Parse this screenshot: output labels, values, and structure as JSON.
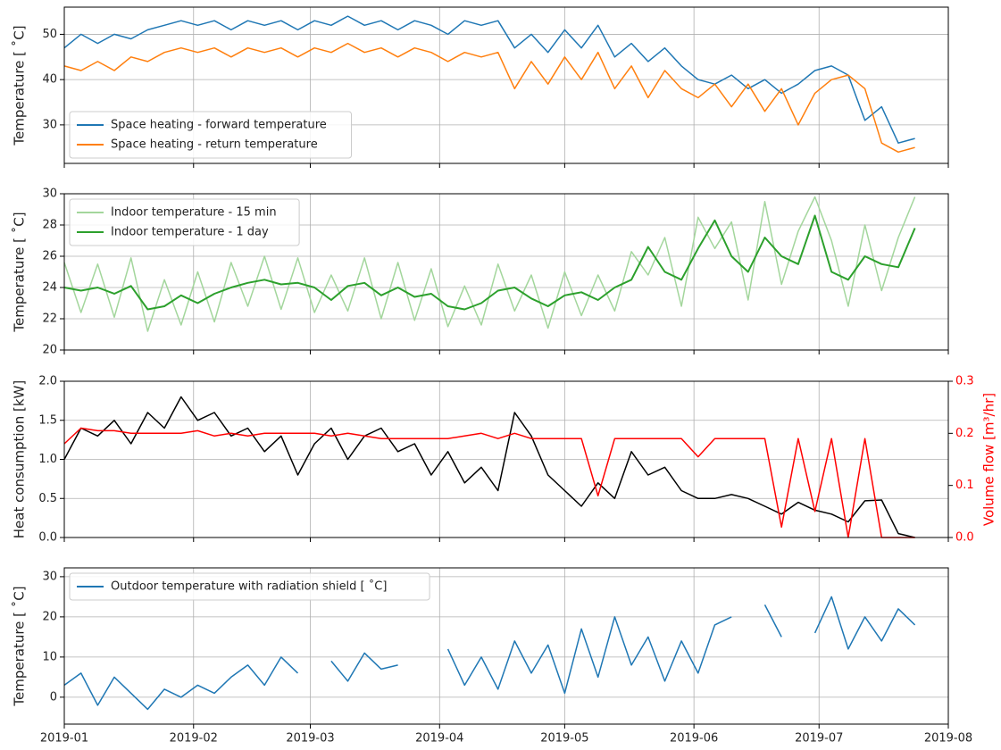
{
  "chart_data": [
    {
      "type": "line",
      "ylabel": "Temperature [ ˚C]",
      "legend": "lower left",
      "grid": true,
      "xlim": [
        0,
        212
      ],
      "xticks": [
        0,
        31,
        59,
        90,
        120,
        151,
        181,
        212
      ],
      "ylim": [
        21.5,
        56
      ],
      "yticks": [
        30,
        40,
        50
      ],
      "x": [
        0,
        4,
        8,
        12,
        16,
        20,
        24,
        28,
        32,
        36,
        40,
        44,
        48,
        52,
        56,
        60,
        64,
        68,
        72,
        76,
        80,
        84,
        88,
        92,
        96,
        100,
        104,
        108,
        112,
        116,
        120,
        124,
        128,
        132,
        136,
        140,
        144,
        148,
        152,
        156,
        160,
        164,
        168,
        172,
        176,
        180,
        184,
        188,
        192,
        196,
        200,
        204
      ],
      "series": [
        {
          "name": "Space heating - forward temperature",
          "color": "#1f77b4",
          "values": [
            47,
            50,
            48,
            50,
            49,
            51,
            52,
            53,
            52,
            53,
            51,
            53,
            52,
            53,
            51,
            53,
            52,
            54,
            52,
            53,
            51,
            53,
            52,
            50,
            53,
            52,
            53,
            47,
            50,
            46,
            51,
            47,
            52,
            45,
            48,
            44,
            47,
            43,
            40,
            39,
            41,
            38,
            40,
            37,
            39,
            42,
            43,
            41,
            31,
            34,
            26,
            27
          ]
        },
        {
          "name": "Space heating - return temperature",
          "color": "#ff7f0e",
          "values": [
            43,
            42,
            44,
            42,
            45,
            44,
            46,
            47,
            46,
            47,
            45,
            47,
            46,
            47,
            45,
            47,
            46,
            48,
            46,
            47,
            45,
            47,
            46,
            44,
            46,
            45,
            46,
            38,
            44,
            39,
            45,
            40,
            46,
            38,
            43,
            36,
            42,
            38,
            36,
            39,
            34,
            39,
            33,
            38,
            30,
            37,
            40,
            41,
            38,
            26,
            24,
            25
          ]
        }
      ]
    },
    {
      "type": "line",
      "ylabel": "Temperature [ ˚C]",
      "legend": "upper left",
      "grid": true,
      "xlim": [
        0,
        212
      ],
      "xticks": [
        0,
        31,
        59,
        90,
        120,
        151,
        181,
        212
      ],
      "ylim": [
        20,
        30
      ],
      "yticks": [
        20,
        22,
        24,
        26,
        28,
        30
      ],
      "x": [
        0,
        4,
        8,
        12,
        16,
        20,
        24,
        28,
        32,
        36,
        40,
        44,
        48,
        52,
        56,
        60,
        64,
        68,
        72,
        76,
        80,
        84,
        88,
        92,
        96,
        100,
        104,
        108,
        112,
        116,
        120,
        124,
        128,
        132,
        136,
        140,
        144,
        148,
        152,
        156,
        160,
        164,
        168,
        172,
        176,
        180,
        184,
        188,
        192,
        196,
        200,
        204
      ],
      "series": [
        {
          "name": "Indoor temperature - 15 min",
          "color": "#a3d69c",
          "values": [
            25.6,
            22.4,
            25.5,
            22.1,
            25.9,
            21.2,
            24.5,
            21.6,
            25,
            21.8,
            25.6,
            22.8,
            26,
            22.6,
            25.9,
            22.4,
            24.8,
            22.5,
            25.9,
            22,
            25.6,
            21.9,
            25.2,
            21.5,
            24.1,
            21.6,
            25.5,
            22.5,
            24.8,
            21.4,
            25,
            22.2,
            24.8,
            22.5,
            26.3,
            24.8,
            27.2,
            22.8,
            28.5,
            26.5,
            28.2,
            23.2,
            29.5,
            24.2,
            27.6,
            29.8,
            27,
            22.8,
            28,
            23.8,
            27.2,
            29.8
          ]
        },
        {
          "name": "Indoor temperature - 1 day",
          "color": "#2ca02c",
          "values": [
            24,
            23.8,
            24,
            23.6,
            24.1,
            22.6,
            22.8,
            23.5,
            23,
            23.6,
            24,
            24.3,
            24.5,
            24.2,
            24.3,
            24,
            23.2,
            24.1,
            24.3,
            23.5,
            24,
            23.4,
            23.6,
            22.8,
            22.6,
            23,
            23.8,
            24,
            23.3,
            22.8,
            23.5,
            23.7,
            23.2,
            24,
            24.5,
            26.6,
            25,
            24.5,
            26.5,
            28.3,
            26,
            25,
            27.2,
            26,
            25.5,
            28.6,
            25,
            24.5,
            26,
            25.5,
            25.3,
            27.8
          ]
        }
      ]
    },
    {
      "type": "line",
      "ylabel": "Heat consumption [kW]",
      "y2label": "Volume flow [m³/hr]",
      "grid": true,
      "xlim": [
        0,
        212
      ],
      "xticks": [
        0,
        31,
        59,
        90,
        120,
        151,
        181,
        212
      ],
      "ylim": [
        0,
        2
      ],
      "yticks": [
        {
          "value": 0,
          "label": "0.0"
        },
        0.5,
        {
          "value": 1,
          "label": "1.0"
        },
        1.5,
        {
          "value": 2,
          "label": "2.0"
        }
      ],
      "y2lim": [
        0,
        0.3
      ],
      "y2ticks": [
        {
          "value": 0,
          "label": "0.0"
        },
        0.1,
        0.2,
        0.3
      ],
      "y2color": "#ff0000",
      "x": [
        0,
        4,
        8,
        12,
        16,
        20,
        24,
        28,
        32,
        36,
        40,
        44,
        48,
        52,
        56,
        60,
        64,
        68,
        72,
        76,
        80,
        84,
        88,
        92,
        96,
        100,
        104,
        108,
        112,
        116,
        120,
        124,
        128,
        132,
        136,
        140,
        144,
        148,
        152,
        156,
        160,
        164,
        168,
        172,
        176,
        180,
        184,
        188,
        192,
        196,
        200,
        204
      ],
      "series": [
        {
          "name": "Heat consumption",
          "color": "#000000",
          "values": [
            1.0,
            1.4,
            1.3,
            1.5,
            1.2,
            1.6,
            1.4,
            1.8,
            1.5,
            1.6,
            1.3,
            1.4,
            1.1,
            1.3,
            0.8,
            1.2,
            1.4,
            1.0,
            1.3,
            1.4,
            1.1,
            1.2,
            0.8,
            1.1,
            0.7,
            0.9,
            0.6,
            1.6,
            1.3,
            0.8,
            0.6,
            0.4,
            0.7,
            0.5,
            1.1,
            0.8,
            0.9,
            0.6,
            0.5,
            0.5,
            0.55,
            0.5,
            0.4,
            0.3,
            0.45,
            0.35,
            0.3,
            0.2,
            0.47,
            0.48,
            0.05,
            0.0
          ]
        },
        {
          "name": "Volume flow",
          "color": "#ff0000",
          "axis": "y2",
          "values": [
            0.18,
            0.21,
            0.205,
            0.205,
            0.2,
            0.2,
            0.2,
            0.2,
            0.205,
            0.195,
            0.2,
            0.195,
            0.2,
            0.2,
            0.2,
            0.2,
            0.195,
            0.2,
            0.195,
            0.19,
            0.19,
            0.19,
            0.19,
            0.19,
            0.195,
            0.2,
            0.19,
            0.2,
            0.19,
            0.19,
            0.19,
            0.19,
            0.08,
            0.19,
            0.19,
            0.19,
            0.19,
            0.19,
            0.155,
            0.19,
            0.19,
            0.19,
            0.19,
            0.02,
            0.19,
            0.05,
            0.19,
            0.0,
            0.19,
            0.0,
            0.0,
            0.0
          ]
        }
      ]
    },
    {
      "type": "line",
      "ylabel": "Temperature [ ˚C]",
      "legend": "upper left",
      "grid": true,
      "xlim": [
        0,
        212
      ],
      "xticks": [
        {
          "value": 0,
          "label": "2019-01"
        },
        {
          "value": 31,
          "label": "2019-02"
        },
        {
          "value": 59,
          "label": "2019-03"
        },
        {
          "value": 90,
          "label": "2019-04"
        },
        {
          "value": 120,
          "label": "2019-05"
        },
        {
          "value": 151,
          "label": "2019-06"
        },
        {
          "value": 181,
          "label": "2019-07"
        },
        {
          "value": 212,
          "label": "2019-08"
        }
      ],
      "ylim": [
        -6.7,
        32.2
      ],
      "yticks": [
        0,
        10,
        20,
        30
      ],
      "x": [
        0,
        4,
        8,
        12,
        16,
        20,
        24,
        28,
        32,
        36,
        40,
        44,
        48,
        52,
        56,
        60,
        64,
        68,
        72,
        76,
        80,
        84,
        88,
        92,
        96,
        100,
        104,
        108,
        112,
        116,
        120,
        124,
        128,
        132,
        136,
        140,
        144,
        148,
        152,
        156,
        160,
        164,
        168,
        172,
        176,
        180,
        184,
        188,
        192,
        196,
        200,
        204
      ],
      "series": [
        {
          "name": "Outdoor temperature with radiation shield [ ˚C]",
          "color": "#1f77b4",
          "values": [
            3,
            6,
            -2,
            5,
            1,
            -3,
            2,
            0,
            3,
            1,
            5,
            8,
            3,
            10,
            6,
            null,
            9,
            4,
            11,
            7,
            8,
            null,
            null,
            12,
            3,
            10,
            2,
            14,
            6,
            13,
            1,
            17,
            5,
            20,
            8,
            15,
            4,
            14,
            6,
            18,
            20,
            null,
            23,
            15,
            null,
            16,
            25,
            12,
            20,
            14,
            22,
            18
          ]
        }
      ]
    }
  ]
}
